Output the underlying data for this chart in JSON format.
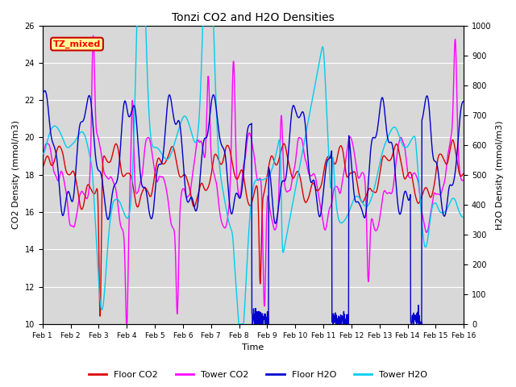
{
  "title": "Tonzi CO2 and H2O Densities",
  "xlabel": "Time",
  "ylabel_left": "CO2 Density (mmol/m3)",
  "ylabel_right": "H2O Density (mmol/m3)",
  "ylim_left": [
    10,
    26
  ],
  "ylim_right": [
    0,
    1000
  ],
  "yticks_left": [
    10,
    12,
    14,
    16,
    18,
    20,
    22,
    24,
    26
  ],
  "yticks_right": [
    0,
    100,
    200,
    300,
    400,
    500,
    600,
    700,
    800,
    900,
    1000
  ],
  "xtick_labels": [
    "Feb 1",
    "Feb 2",
    "Feb 3",
    "Feb 4",
    "Feb 5",
    "Feb 6",
    "Feb 7",
    "Feb 8",
    "Feb 9",
    "Feb 10",
    "Feb 11",
    "Feb 12",
    "Feb 13",
    "Feb 14",
    "Feb 15",
    "Feb 16"
  ],
  "legend_labels": [
    "Floor CO2",
    "Tower CO2",
    "Floor H2O",
    "Tower H2O"
  ],
  "colors": {
    "floor_co2": "#dd0000",
    "tower_co2": "#ff00ff",
    "floor_h2o": "#0000cc",
    "tower_h2o": "#00ccee"
  },
  "annotation_text": "TZ_mixed",
  "annotation_facecolor": "#ffff99",
  "annotation_edgecolor": "#cc0000",
  "plot_bg": "#d8d8d8",
  "fig_bg": "#ffffff",
  "grid_color": "#ffffff",
  "n_points": 1500,
  "seed": 7
}
